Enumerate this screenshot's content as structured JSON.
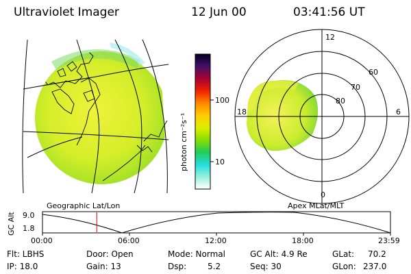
{
  "header": {
    "title": "Ultraviolet Imager",
    "date": "12 Jun 00",
    "time": "03:41:56 UT"
  },
  "colorbar": {
    "unit_label": "photon cm⁻²s⁻¹",
    "ticks": [
      "100",
      "10"
    ],
    "gradient_colors": [
      "#000022",
      "#441166",
      "#aa0033",
      "#ee2200",
      "#ff8800",
      "#ffcc00",
      "#ddee00",
      "#88dd00",
      "#22cc55",
      "#22dddd",
      "#99eedd",
      "#ffffff"
    ]
  },
  "map_panel": {
    "label": "Geographic Lat/Lon"
  },
  "polar_panel": {
    "label": "Apex MLat/MLT",
    "mlt_labels": {
      "top": "12",
      "left": "18",
      "right": "6",
      "bottom": "0"
    },
    "lat_labels": [
      "60",
      "70",
      "80"
    ]
  },
  "timeline": {
    "ylabel": "GC Alt",
    "yticks": [
      "9.0",
      "1.8"
    ],
    "xticks": [
      "00:00",
      "06:00",
      "12:00",
      "18:00",
      "23:59"
    ],
    "current_time_fraction": 0.156
  },
  "info": {
    "row1": [
      {
        "label": "Flt: LBHS"
      },
      {
        "label": "Door: Open"
      },
      {
        "label": "Mode: Normal"
      },
      {
        "label": "GC Alt: 4.9 Re"
      },
      {
        "label": "GLat:",
        "value": "70.2"
      }
    ],
    "row2": [
      {
        "label": "IP: 18.0"
      },
      {
        "label": "Gain: 13"
      },
      {
        "label": "Dsp:",
        "value": "5.2"
      },
      {
        "label": "Seq: 30"
      },
      {
        "label": "GLon:",
        "value": "237.0"
      }
    ]
  }
}
